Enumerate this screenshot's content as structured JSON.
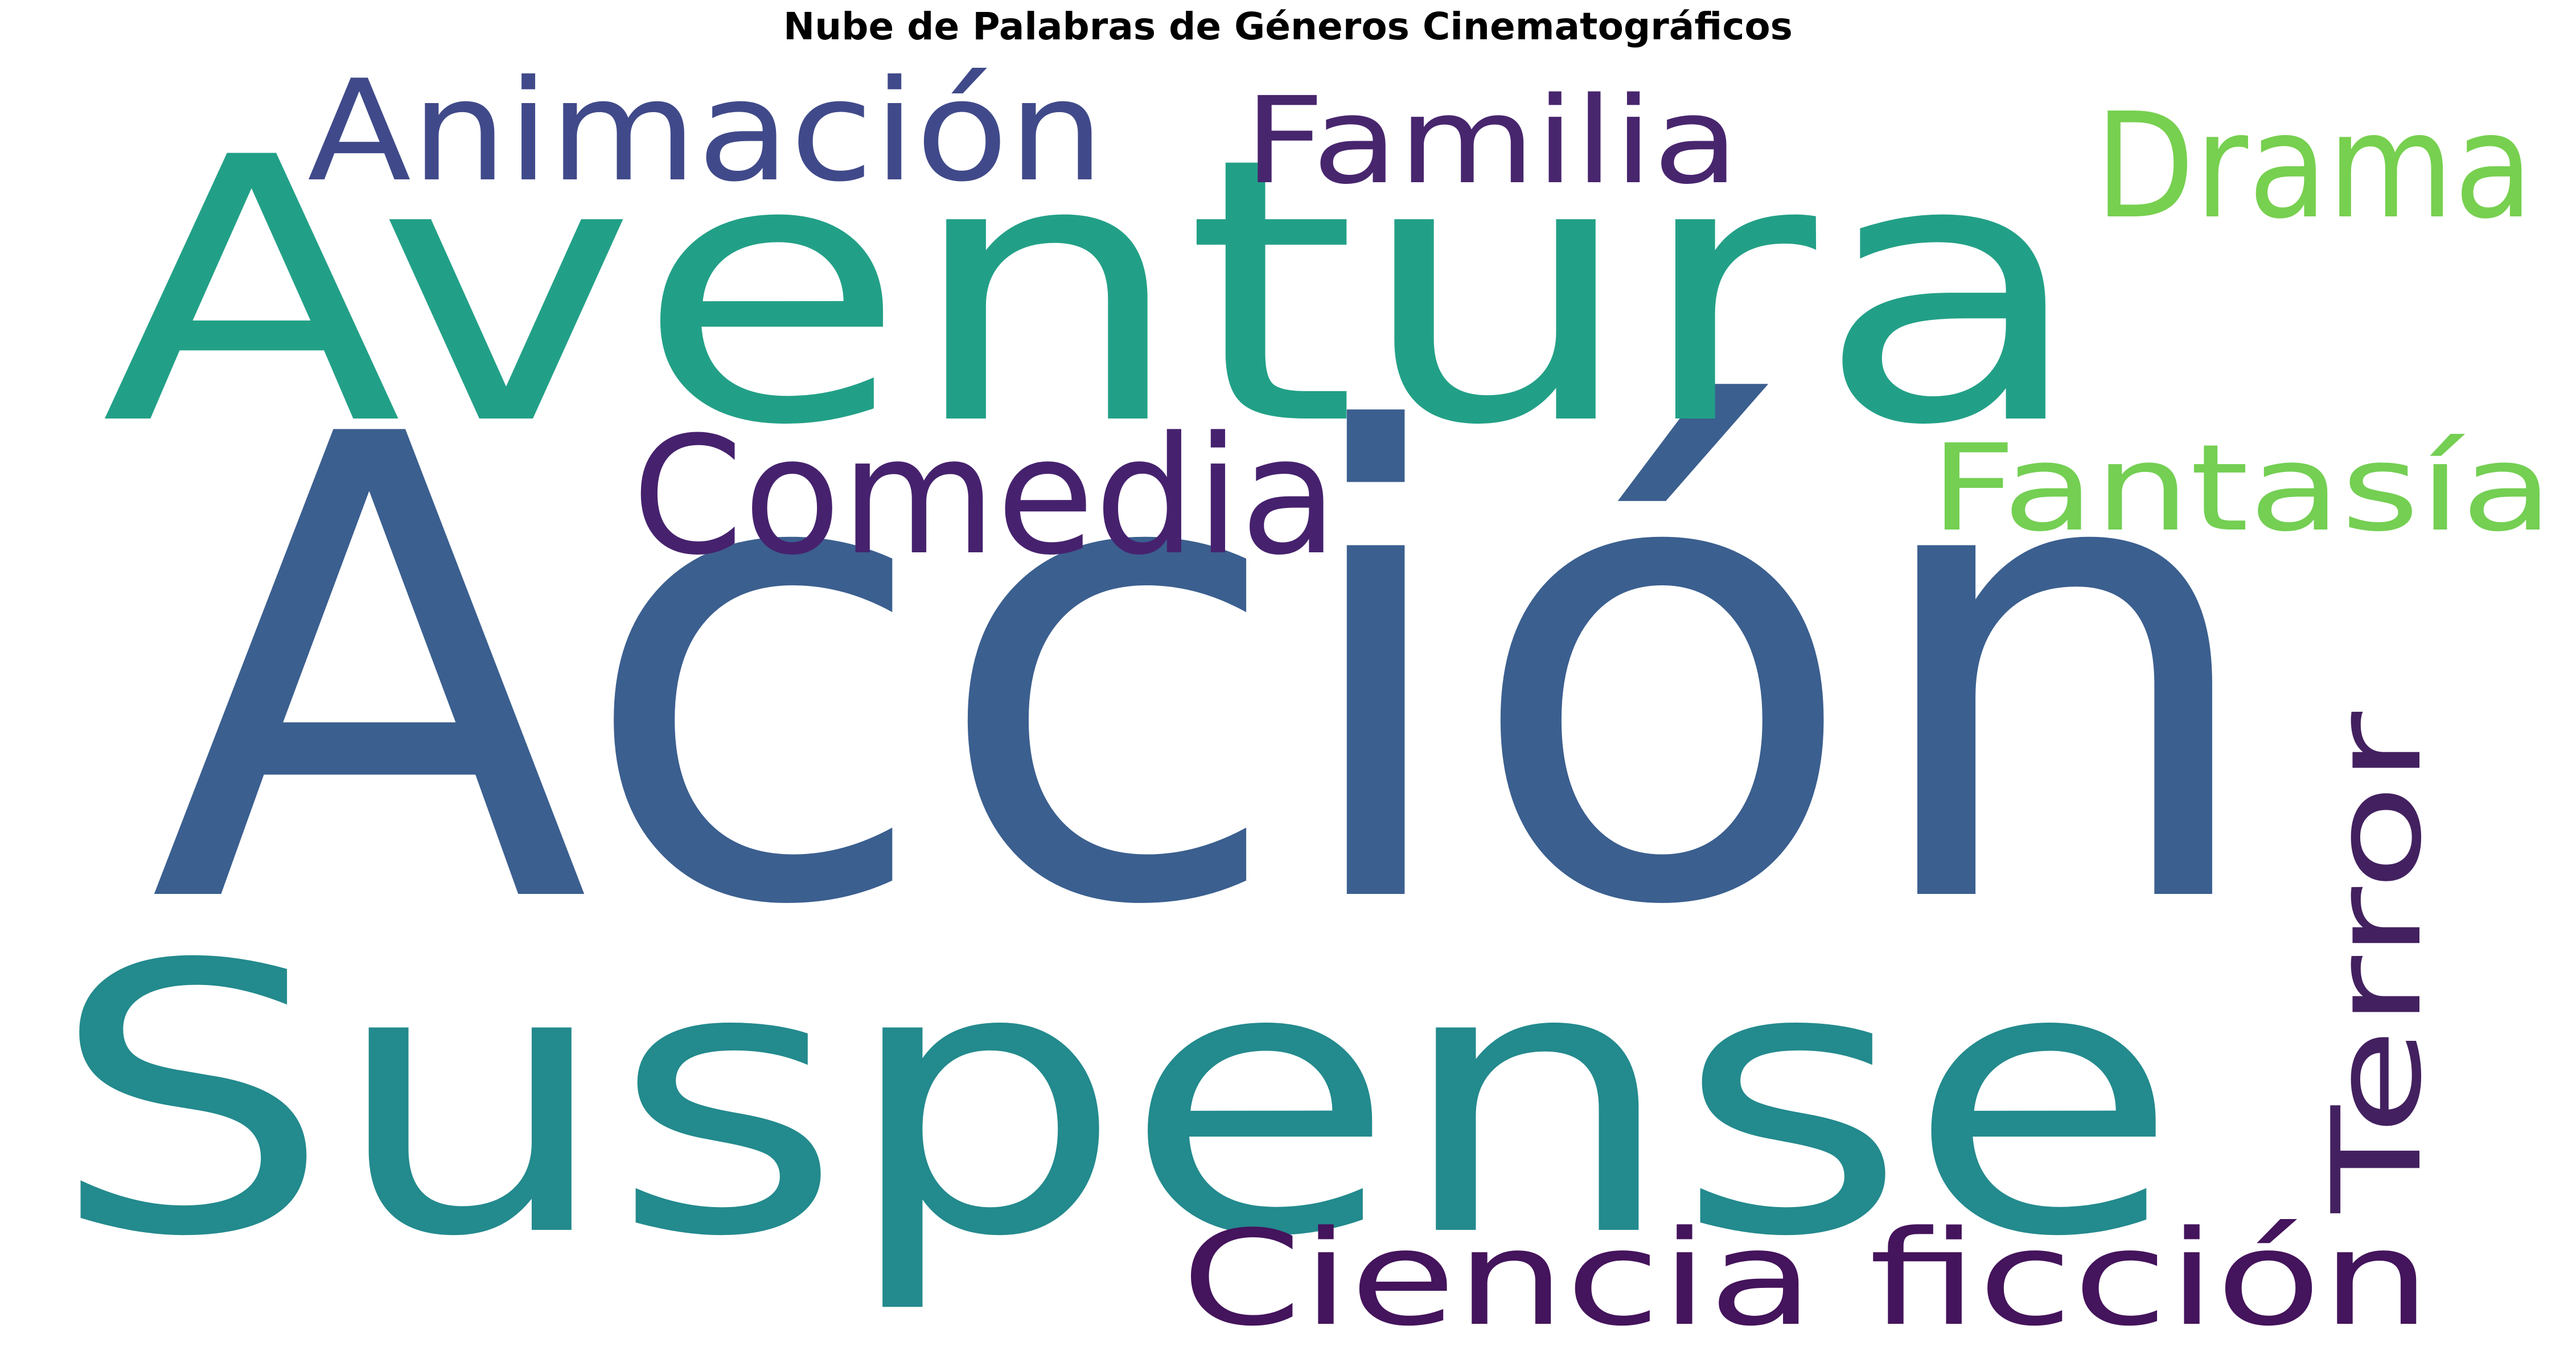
{
  "title": "Nube de Palabras de Géneros Cinematográficos",
  "word_cloud": {
    "words": [
      {
        "text": "Acción",
        "color": "#3b5f8f"
      },
      {
        "text": "Aventura",
        "color": "#22a087"
      },
      {
        "text": "Suspense",
        "color": "#238a8d"
      },
      {
        "text": "Animación",
        "color": "#404a8a"
      },
      {
        "text": "Familia",
        "color": "#48266e"
      },
      {
        "text": "Drama",
        "color": "#77d04f"
      },
      {
        "text": "Comedia",
        "color": "#46226e"
      },
      {
        "text": "Fantasía",
        "color": "#74cf53"
      },
      {
        "text": "Terror",
        "color": "#432160"
      },
      {
        "text": "Ciencia ficción",
        "color": "#44145c"
      }
    ]
  }
}
